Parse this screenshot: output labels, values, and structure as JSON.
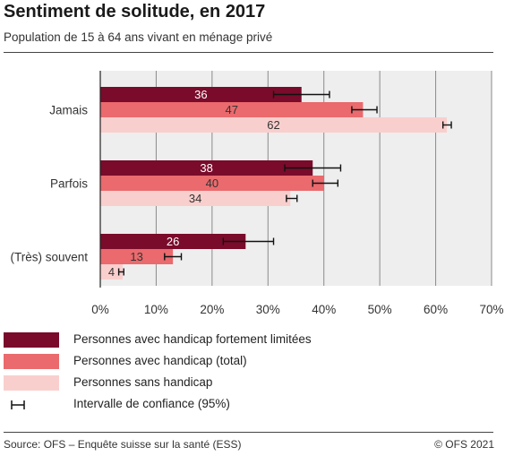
{
  "header": {
    "title": "Sentiment de solitude, en 2017",
    "subtitle": "Population de 15 à 64 ans vivant en ménage privé"
  },
  "chart_data": {
    "type": "bar",
    "orientation": "horizontal",
    "categories": [
      "Jamais",
      "Parfois",
      "(Très) souvent"
    ],
    "series": [
      {
        "name": "Personnes avec handicap fortement limitées",
        "color": "#7a0b2b",
        "values": [
          36,
          38,
          26
        ],
        "labels": [
          "36",
          "38",
          "26"
        ],
        "ci": [
          [
            31,
            41
          ],
          [
            33,
            43
          ],
          [
            22,
            31
          ]
        ]
      },
      {
        "name": "Personnes avec handicap (total)",
        "color": "#ea6a6d",
        "values": [
          47,
          40,
          13
        ],
        "labels": [
          "47",
          "40",
          "13"
        ],
        "ci": [
          [
            45,
            49.5
          ],
          [
            38,
            42.5
          ],
          [
            11.5,
            14.5
          ]
        ]
      },
      {
        "name": "Personnes sans handicap",
        "color": "#f9cfcd",
        "values": [
          62,
          34,
          4
        ],
        "labels": [
          "62",
          "34",
          "4"
        ],
        "ci": [
          [
            61.3,
            62.8
          ],
          [
            33.3,
            35.2
          ],
          [
            3.3,
            4.2
          ]
        ]
      }
    ],
    "x_ticks": [
      "0%",
      "10%",
      "20%",
      "30%",
      "40%",
      "50%",
      "60%",
      "70%"
    ],
    "xlim": [
      0,
      70
    ],
    "grid": true,
    "legend_position": "bottom",
    "ci_label": "Intervalle de confiance (95%)"
  },
  "footer": {
    "source": "Source: OFS – Enquête suisse sur la santé (ESS)",
    "copyright": "© OFS 2021"
  }
}
